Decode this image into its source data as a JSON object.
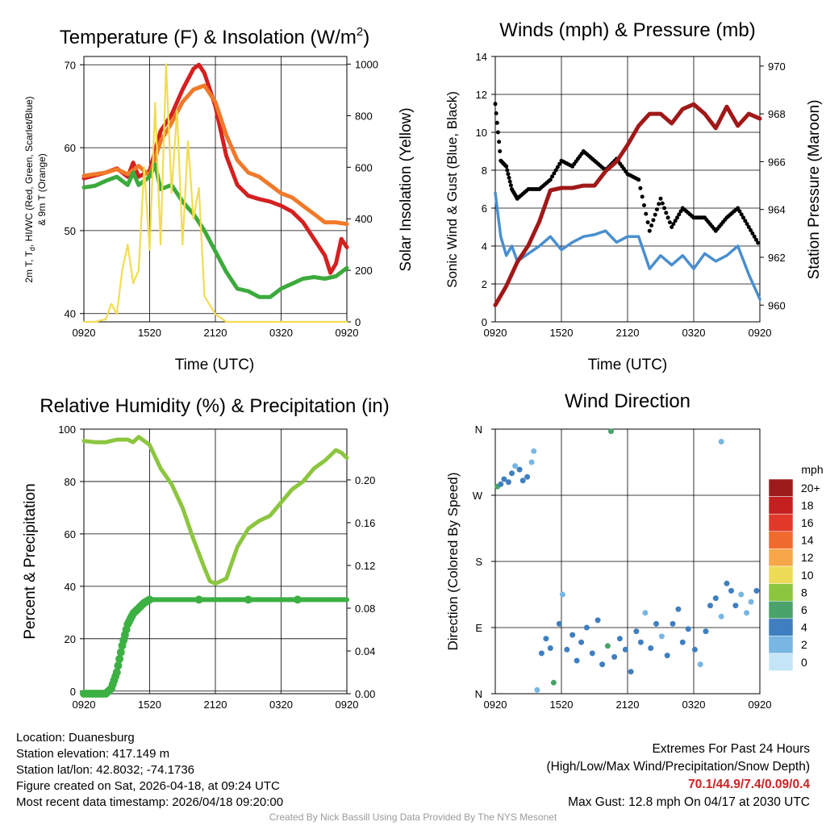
{
  "panels": {
    "temperature": {
      "title": "Temperature (F) & Insolation (W/m",
      "title_sup": "2",
      "title_close": ")",
      "ylabel_left_line1": "2m T, T",
      "ylabel_left_sub": "d",
      "ylabel_left_line1b": ", HI/WC (Red, Green, Scarlet/Blue)",
      "ylabel_left_line2": "& 9m T (Orange)",
      "ylabel_right": "Solar Insolation (Yellow)",
      "xlabel": "Time (UTC)"
    },
    "winds": {
      "title": "Winds (mph) & Pressure (mb)",
      "ylabel_left": "Sonic Wind & Gust (Blue, Black)",
      "ylabel_right": "Station Pressure (Maroon)",
      "xlabel": "Time (UTC)"
    },
    "humidity": {
      "title": "Relative Humidity (%) & Precipitation (in)",
      "ylabel_left": "Percent & Precipitation"
    },
    "direction": {
      "title": "Wind Direction",
      "ylabel_left": "Direction (Colored By Speed)",
      "legend_title": "mph"
    }
  },
  "chart_data": [
    {
      "id": "temperature",
      "type": "line",
      "x_ticks": [
        "0920",
        "1520",
        "2120",
        "0320",
        "0920"
      ],
      "x_range_hours": [
        0,
        24
      ],
      "ylim_left": [
        39,
        71
      ],
      "y_ticks_left": [
        40,
        50,
        60,
        70
      ],
      "ylim_right": [
        0,
        1030
      ],
      "y_ticks_right": [
        0,
        200,
        400,
        600,
        800,
        1000
      ],
      "grid": true,
      "series": [
        {
          "name": "2m T",
          "color": "#d42020",
          "axis": "left",
          "x": [
            0,
            2,
            3,
            4,
            4.5,
            5,
            6,
            7,
            8,
            9,
            10,
            10.5,
            11,
            12,
            13,
            14,
            15,
            16,
            17,
            18,
            19,
            20,
            21,
            22,
            22.5,
            23,
            23.5,
            24
          ],
          "values": [
            56.3,
            57,
            57.5,
            56.5,
            58.2,
            56.5,
            57.2,
            62,
            64,
            67,
            69.5,
            70,
            69,
            65,
            59,
            55.5,
            54.2,
            53.8,
            53.5,
            53,
            52.3,
            51,
            49,
            47,
            44.9,
            46,
            49,
            48
          ]
        },
        {
          "name": "9m T",
          "color": "#f07a2a",
          "axis": "left",
          "x": [
            0,
            2,
            3,
            4,
            5,
            6,
            7,
            8,
            9,
            10,
            11,
            12,
            13,
            14,
            15,
            16,
            17,
            18,
            19,
            20,
            21,
            22,
            23,
            24
          ],
          "values": [
            56.6,
            57,
            57.4,
            56.8,
            57.8,
            56.6,
            60.8,
            63,
            65.5,
            67,
            67.5,
            65.5,
            61.5,
            58.5,
            57,
            56.5,
            55.5,
            54.5,
            54,
            53,
            52,
            51,
            51,
            50.8
          ]
        },
        {
          "name": "Td",
          "color": "#3caa3c",
          "axis": "left",
          "x": [
            0,
            1,
            2,
            3,
            4,
            4.5,
            5,
            6,
            6.5,
            7,
            8,
            9,
            10,
            11,
            12,
            13,
            14,
            15,
            16,
            17,
            18,
            19,
            20,
            21,
            22,
            23,
            24
          ],
          "values": [
            55.2,
            55.4,
            56,
            56.5,
            55.5,
            57,
            55.5,
            56.5,
            58,
            55,
            55.5,
            53.5,
            52,
            50,
            47.5,
            45,
            43,
            42.7,
            42,
            42,
            43,
            43.6,
            44.2,
            44.4,
            44.2,
            44.5,
            45.5
          ]
        },
        {
          "name": "Insolation",
          "color": "#f2dc52",
          "axis": "right",
          "x": [
            0,
            1,
            2,
            2.5,
            3,
            3.5,
            4,
            4.5,
            5,
            5.5,
            6,
            6.5,
            7,
            7.5,
            8,
            8.5,
            9,
            9.5,
            10,
            10.5,
            11,
            12,
            13,
            14,
            24
          ],
          "values": [
            0,
            0,
            10,
            70,
            30,
            200,
            300,
            150,
            200,
            600,
            280,
            850,
            300,
            1000,
            500,
            820,
            300,
            700,
            400,
            520,
            100,
            30,
            0,
            0,
            0
          ]
        }
      ]
    },
    {
      "id": "winds",
      "type": "line",
      "x_ticks": [
        "0920",
        "1520",
        "2120",
        "0320",
        "0920"
      ],
      "x_range_hours": [
        0,
        24
      ],
      "ylim_left": [
        0,
        14
      ],
      "y_ticks_left": [
        0,
        2,
        4,
        6,
        8,
        10,
        12,
        14
      ],
      "ylim_right": [
        959.3,
        970.4
      ],
      "y_ticks_right": [
        960,
        962,
        964,
        966,
        968,
        970
      ],
      "grid": true,
      "series": [
        {
          "name": "Sonic Wind",
          "color": "#4a8fcf",
          "axis": "left",
          "x": [
            0,
            0.5,
            1,
            1.5,
            2,
            3,
            4,
            5,
            6,
            7,
            8,
            9,
            10,
            11,
            12,
            13,
            14,
            15,
            16,
            17,
            18,
            19,
            20,
            21,
            22,
            23,
            24
          ],
          "values": [
            6.8,
            4.5,
            3.5,
            4,
            3.2,
            3.6,
            4,
            4.5,
            3.8,
            4.2,
            4.5,
            4.6,
            4.8,
            4.2,
            4.5,
            4.5,
            2.8,
            3.5,
            3,
            3.5,
            2.8,
            3.6,
            3.2,
            3.5,
            4,
            2.5,
            1.2
          ]
        },
        {
          "name": "Gust",
          "color": "#000000",
          "axis": "left",
          "x": [
            0,
            0.5,
            1,
            1.5,
            2,
            3,
            4,
            5,
            6,
            7,
            8,
            9,
            10,
            11,
            12,
            13,
            14,
            15,
            16,
            17,
            18,
            19,
            20,
            21,
            22,
            23,
            24
          ],
          "values": [
            11.5,
            8.5,
            8.2,
            7,
            6.5,
            7,
            7,
            7.5,
            8.5,
            8.2,
            9,
            8.5,
            8,
            8.6,
            7.8,
            7.5,
            4.8,
            6.5,
            5,
            6,
            5.5,
            5.5,
            4.8,
            5.5,
            6,
            5,
            4
          ]
        },
        {
          "name": "Station Pressure",
          "color": "#a01818",
          "axis": "right",
          "x": [
            0,
            1,
            2,
            3,
            4,
            5,
            6,
            7,
            8,
            9,
            10,
            11,
            12,
            13,
            14,
            15,
            16,
            17,
            18,
            19,
            20,
            21,
            22,
            23,
            24
          ],
          "values": [
            960.0,
            960.8,
            961.8,
            962.5,
            963.5,
            964.8,
            964.9,
            964.9,
            965.0,
            965.0,
            965.6,
            966.0,
            966.7,
            967.5,
            968.0,
            968.0,
            967.6,
            968.2,
            968.4,
            968.0,
            967.4,
            968.3,
            967.5,
            968.0,
            967.8
          ]
        }
      ],
      "max_gust": 12.8
    },
    {
      "id": "humidity",
      "type": "line",
      "x_ticks": [
        "0920",
        "1520",
        "2120",
        "0320",
        "0920"
      ],
      "x_range_hours": [
        0,
        24
      ],
      "ylim_left": [
        -1,
        100
      ],
      "y_ticks_left": [
        0,
        20,
        40,
        60,
        80,
        100
      ],
      "ylim_right": [
        0,
        0.2475
      ],
      "y_ticks_right": [
        "0.00",
        "0.04",
        "0.08",
        "0.12",
        "0.16",
        "0.20"
      ],
      "grid": true,
      "series": [
        {
          "name": "Relative Humidity",
          "color": "#8cc63f",
          "axis": "left",
          "x": [
            0,
            1,
            2,
            3,
            4,
            4.5,
            5,
            6,
            7,
            8,
            9,
            10,
            11,
            11.5,
            12,
            13,
            14,
            15,
            16,
            17,
            18,
            19,
            20,
            21,
            22,
            23,
            23.5,
            24
          ],
          "values": [
            95.5,
            95,
            95,
            96,
            96,
            95,
            97,
            94,
            85,
            79,
            70,
            58,
            47,
            42,
            41,
            43,
            55,
            62,
            65,
            67,
            72,
            77,
            80,
            85,
            88,
            92,
            91,
            89
          ]
        },
        {
          "name": "Precipitation",
          "color": "#3cb043",
          "axis": "right",
          "x": [
            0,
            1,
            2,
            2.5,
            3,
            3.5,
            4,
            4.5,
            5,
            5.5,
            6,
            24
          ],
          "values": [
            0,
            0,
            0,
            0.005,
            0.02,
            0.045,
            0.065,
            0.075,
            0.08,
            0.085,
            0.088,
            0.088
          ]
        }
      ]
    },
    {
      "id": "direction",
      "type": "scatter",
      "x_ticks": [
        "0920",
        "1520",
        "2120",
        "0320",
        "0920"
      ],
      "x_range_hours": [
        0,
        24
      ],
      "y_ticks": [
        "N",
        "E",
        "S",
        "W",
        "N"
      ],
      "y_range_degrees": [
        0,
        360
      ],
      "grid": true,
      "points": [
        {
          "x": 0.2,
          "y": 282,
          "s": 6
        },
        {
          "x": 0.5,
          "y": 285,
          "s": 4
        },
        {
          "x": 0.8,
          "y": 292,
          "s": 3
        },
        {
          "x": 1.2,
          "y": 288,
          "s": 4
        },
        {
          "x": 1.5,
          "y": 300,
          "s": 3
        },
        {
          "x": 1.8,
          "y": 310,
          "s": 2
        },
        {
          "x": 2.2,
          "y": 305,
          "s": 4
        },
        {
          "x": 2.5,
          "y": 290,
          "s": 4
        },
        {
          "x": 2.9,
          "y": 295,
          "s": 3
        },
        {
          "x": 3.3,
          "y": 315,
          "s": 2
        },
        {
          "x": 3.5,
          "y": 330,
          "s": 2
        },
        {
          "x": 10.5,
          "y": 357,
          "s": 6
        },
        {
          "x": 20.5,
          "y": 343,
          "s": 2
        },
        {
          "x": 3.8,
          "y": 5,
          "s": 2
        },
        {
          "x": 4.2,
          "y": 55,
          "s": 4
        },
        {
          "x": 4.6,
          "y": 75,
          "s": 4
        },
        {
          "x": 5,
          "y": 62,
          "s": 3
        },
        {
          "x": 5.3,
          "y": 15,
          "s": 6
        },
        {
          "x": 5.8,
          "y": 95,
          "s": 3
        },
        {
          "x": 6.1,
          "y": 135,
          "s": 2
        },
        {
          "x": 6.5,
          "y": 60,
          "s": 4
        },
        {
          "x": 7,
          "y": 80,
          "s": 3
        },
        {
          "x": 7.4,
          "y": 45,
          "s": 4
        },
        {
          "x": 7.8,
          "y": 70,
          "s": 3
        },
        {
          "x": 8.3,
          "y": 90,
          "s": 4
        },
        {
          "x": 8.8,
          "y": 55,
          "s": 4
        },
        {
          "x": 9.3,
          "y": 100,
          "s": 3
        },
        {
          "x": 9.7,
          "y": 40,
          "s": 4
        },
        {
          "x": 10.2,
          "y": 65,
          "s": 6
        },
        {
          "x": 10.8,
          "y": 50,
          "s": 4
        },
        {
          "x": 11.3,
          "y": 75,
          "s": 4
        },
        {
          "x": 11.8,
          "y": 60,
          "s": 3
        },
        {
          "x": 12.3,
          "y": 30,
          "s": 4
        },
        {
          "x": 12.8,
          "y": 85,
          "s": 3
        },
        {
          "x": 13.2,
          "y": 70,
          "s": 4
        },
        {
          "x": 13.6,
          "y": 110,
          "s": 2
        },
        {
          "x": 14.1,
          "y": 62,
          "s": 3
        },
        {
          "x": 14.6,
          "y": 95,
          "s": 4
        },
        {
          "x": 15.1,
          "y": 78,
          "s": 2
        },
        {
          "x": 15.6,
          "y": 52,
          "s": 4
        },
        {
          "x": 16.1,
          "y": 95,
          "s": 3
        },
        {
          "x": 16.6,
          "y": 115,
          "s": 4
        },
        {
          "x": 17,
          "y": 70,
          "s": 3
        },
        {
          "x": 17.5,
          "y": 88,
          "s": 4
        },
        {
          "x": 18.1,
          "y": 60,
          "s": 3
        },
        {
          "x": 18.6,
          "y": 40,
          "s": 2
        },
        {
          "x": 19.1,
          "y": 85,
          "s": 4
        },
        {
          "x": 19.5,
          "y": 120,
          "s": 3
        },
        {
          "x": 20,
          "y": 130,
          "s": 4
        },
        {
          "x": 20.5,
          "y": 105,
          "s": 2
        },
        {
          "x": 21,
          "y": 150,
          "s": 4
        },
        {
          "x": 21.4,
          "y": 140,
          "s": 4
        },
        {
          "x": 21.8,
          "y": 120,
          "s": 3
        },
        {
          "x": 22.3,
          "y": 135,
          "s": 2
        },
        {
          "x": 22.8,
          "y": 110,
          "s": 1
        },
        {
          "x": 23.2,
          "y": 125,
          "s": 2
        },
        {
          "x": 23.7,
          "y": 140,
          "s": 3
        }
      ]
    }
  ],
  "legend": {
    "unit": "mph",
    "levels": [
      "20+",
      "18",
      "16",
      "14",
      "12",
      "10",
      "8",
      "6",
      "4",
      "2",
      "0"
    ],
    "colors": [
      "#9e1b1b",
      "#c42020",
      "#e0392a",
      "#ef6a2c",
      "#f7a64a",
      "#eddb57",
      "#8cc63f",
      "#4aa36a",
      "#3f7fc0",
      "#78b6e3",
      "#c4e5f7"
    ]
  },
  "info": {
    "location": "Location: Duanesburg",
    "elevation": "Station elevation: 417.149 m",
    "latlon": "Station lat/lon: 42.8032; -74.1736",
    "created": "Figure created on Sat, 2026-04-18, at 09:24 UTC",
    "recent": "Most recent data timestamp: 2026/04/18 09:20:00",
    "extremes_title": "Extremes For Past 24 Hours",
    "extremes_desc": "(High/Low/Max Wind/Precipitation/Snow Depth)",
    "extremes_values": "70.1/44.9/7.4/0.09/0.4",
    "max_gust": "Max Gust: 12.8 mph On 04/17 at 2030 UTC"
  },
  "credit": "Created By Nick Bassill Using Data Provided By The NYS Mesonet"
}
